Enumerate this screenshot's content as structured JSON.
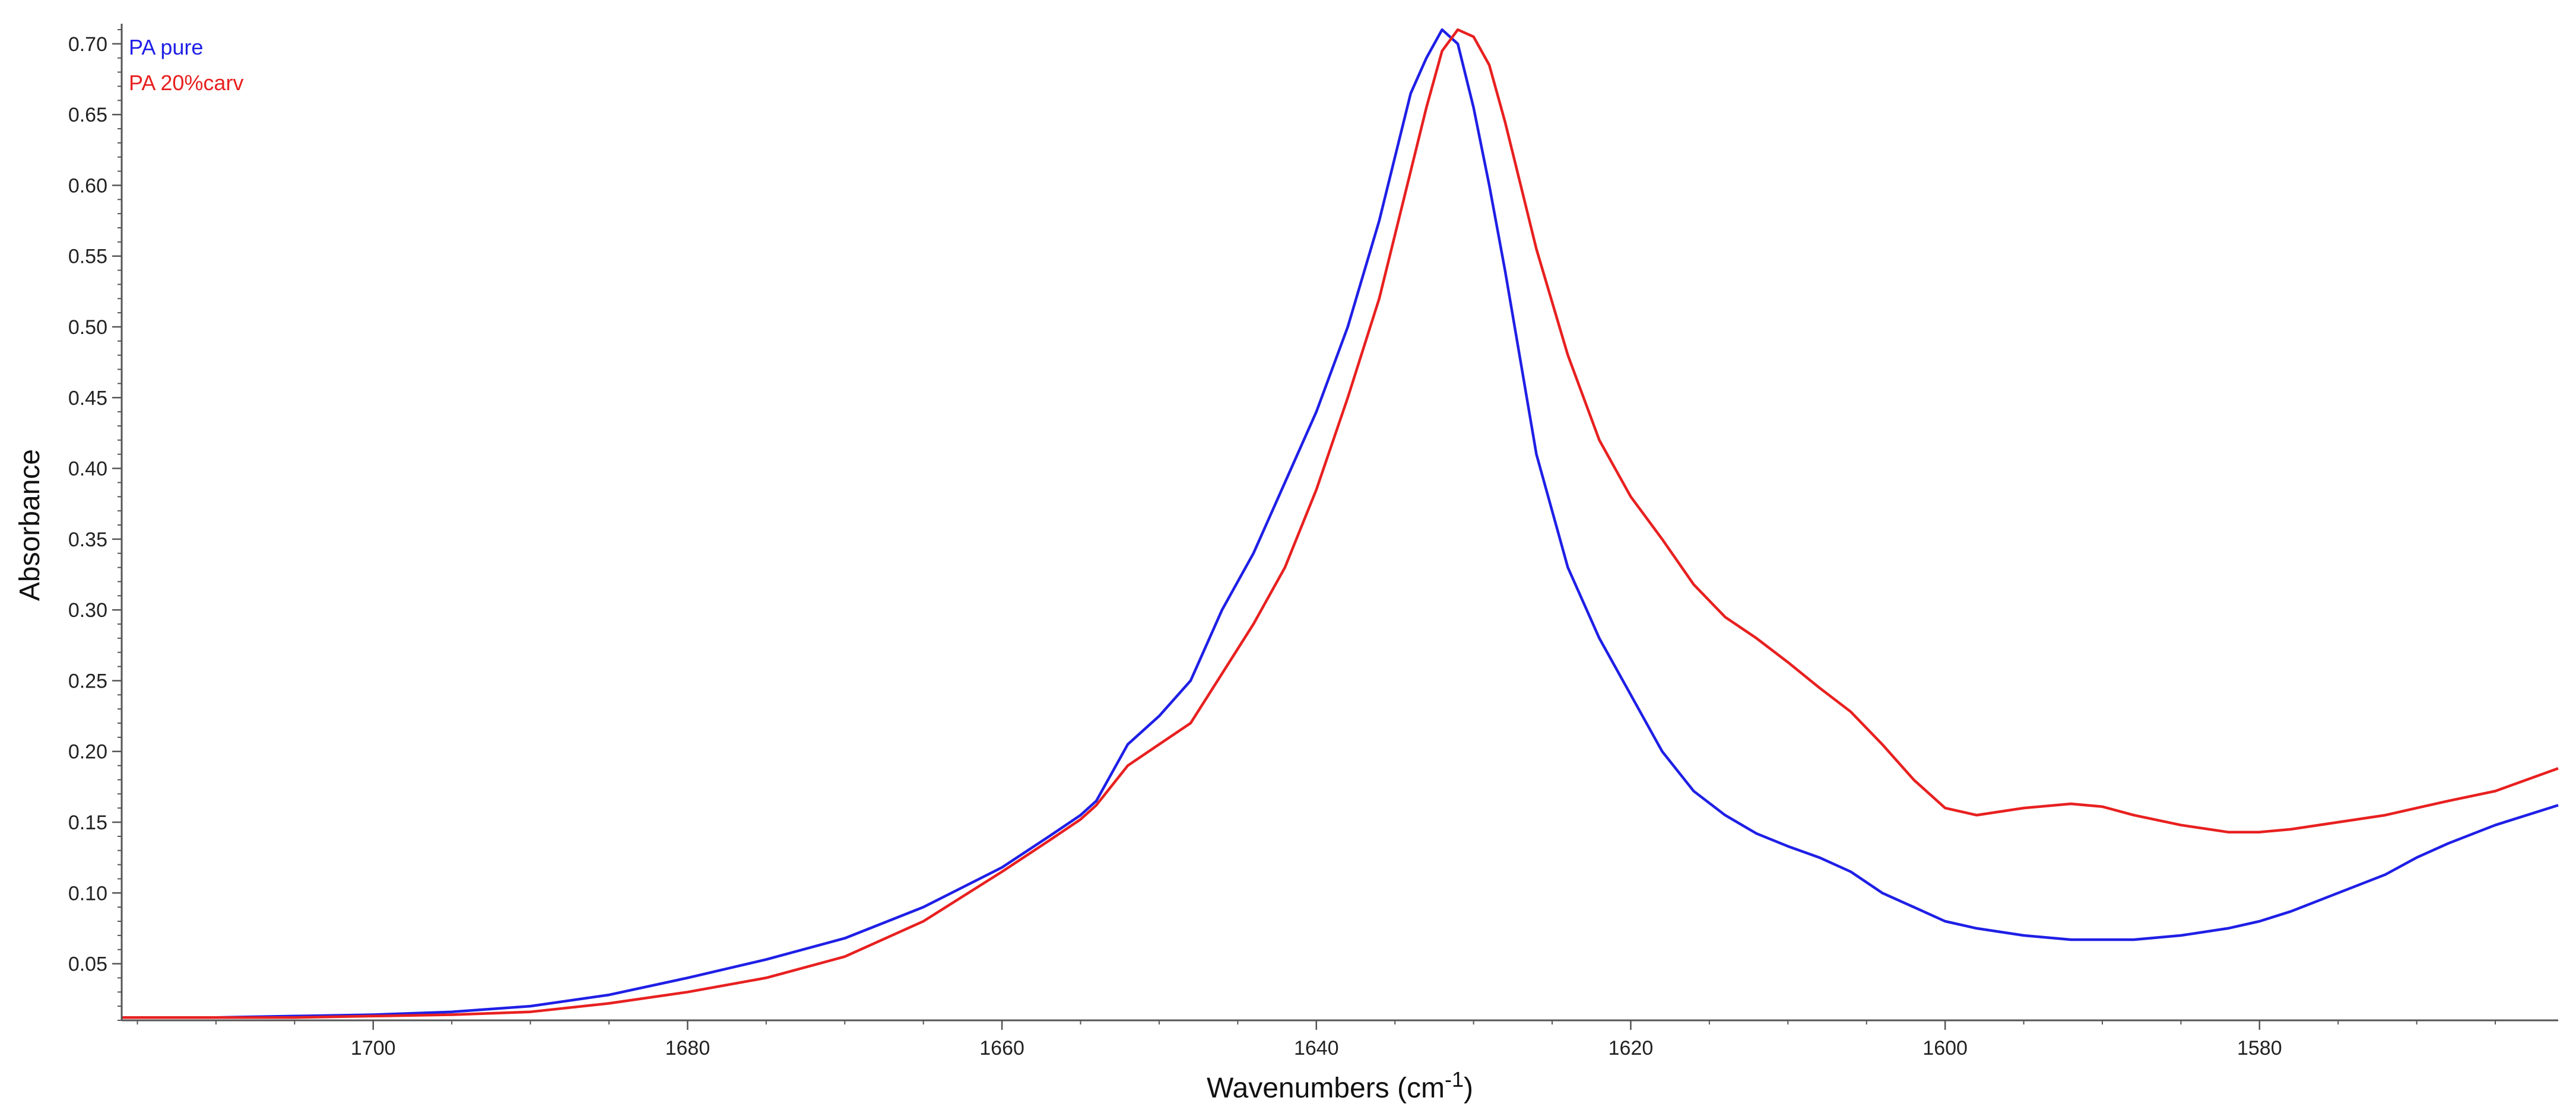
{
  "chart_data": {
    "type": "line",
    "title": "",
    "xlabel": "Wavenumbers (cm-1)",
    "ylabel": "Absorbance",
    "x_reversed": true,
    "xlim": [
      1716,
      1561
    ],
    "ylim": [
      0.01,
      0.71
    ],
    "x_ticks": [
      1700,
      1680,
      1660,
      1640,
      1620,
      1600,
      1580
    ],
    "y_ticks": [
      0.05,
      0.1,
      0.15,
      0.2,
      0.25,
      0.3,
      0.35,
      0.4,
      0.45,
      0.5,
      0.55,
      0.6,
      0.65,
      0.7
    ],
    "grid": false,
    "legend_position": "top-left",
    "series": [
      {
        "name": "PA pure",
        "color": "#1f1fe6",
        "x": [
          1716,
          1710,
          1705,
          1700,
          1695,
          1690,
          1685,
          1680,
          1675,
          1670,
          1665,
          1660,
          1657,
          1655,
          1654,
          1652,
          1650,
          1648,
          1646,
          1644,
          1642,
          1640,
          1638,
          1636,
          1635,
          1634,
          1633,
          1632,
          1631,
          1630,
          1629,
          1628,
          1627,
          1626,
          1624,
          1622,
          1620,
          1618,
          1616,
          1614,
          1612,
          1610,
          1608,
          1606,
          1604,
          1602,
          1600,
          1598,
          1595,
          1592,
          1590,
          1588,
          1585,
          1582,
          1580,
          1578,
          1575,
          1572,
          1570,
          1568,
          1565,
          1561
        ],
        "y": [
          0.012,
          0.012,
          0.013,
          0.014,
          0.016,
          0.02,
          0.028,
          0.04,
          0.053,
          0.068,
          0.09,
          0.118,
          0.14,
          0.155,
          0.165,
          0.205,
          0.225,
          0.25,
          0.3,
          0.34,
          0.39,
          0.44,
          0.5,
          0.575,
          0.62,
          0.665,
          0.69,
          0.71,
          0.7,
          0.655,
          0.6,
          0.54,
          0.475,
          0.41,
          0.33,
          0.28,
          0.24,
          0.2,
          0.172,
          0.155,
          0.142,
          0.133,
          0.125,
          0.115,
          0.1,
          0.09,
          0.08,
          0.075,
          0.07,
          0.067,
          0.067,
          0.067,
          0.07,
          0.075,
          0.08,
          0.087,
          0.1,
          0.113,
          0.125,
          0.135,
          0.148,
          0.162
        ]
      },
      {
        "name": "PA 20%carv",
        "color": "#e82020",
        "x": [
          1716,
          1710,
          1705,
          1700,
          1695,
          1690,
          1685,
          1680,
          1675,
          1670,
          1665,
          1660,
          1657,
          1655,
          1654,
          1652,
          1650,
          1648,
          1646,
          1644,
          1642,
          1640,
          1638,
          1636,
          1635,
          1634,
          1633,
          1632,
          1631,
          1630,
          1629,
          1628,
          1627,
          1626,
          1624,
          1622,
          1620,
          1618,
          1616,
          1614,
          1612,
          1610,
          1608,
          1606,
          1604,
          1602,
          1600,
          1598,
          1595,
          1592,
          1590,
          1588,
          1585,
          1582,
          1580,
          1578,
          1575,
          1572,
          1570,
          1568,
          1565,
          1561
        ],
        "y": [
          0.012,
          0.012,
          0.012,
          0.013,
          0.014,
          0.016,
          0.022,
          0.03,
          0.04,
          0.055,
          0.08,
          0.115,
          0.137,
          0.152,
          0.162,
          0.19,
          0.205,
          0.22,
          0.255,
          0.29,
          0.33,
          0.385,
          0.45,
          0.52,
          0.565,
          0.61,
          0.655,
          0.695,
          0.71,
          0.705,
          0.685,
          0.645,
          0.6,
          0.555,
          0.48,
          0.42,
          0.38,
          0.35,
          0.318,
          0.295,
          0.28,
          0.263,
          0.245,
          0.228,
          0.205,
          0.18,
          0.16,
          0.155,
          0.16,
          0.163,
          0.161,
          0.155,
          0.148,
          0.143,
          0.143,
          0.145,
          0.15,
          0.155,
          0.16,
          0.165,
          0.172,
          0.188
        ]
      }
    ]
  }
}
